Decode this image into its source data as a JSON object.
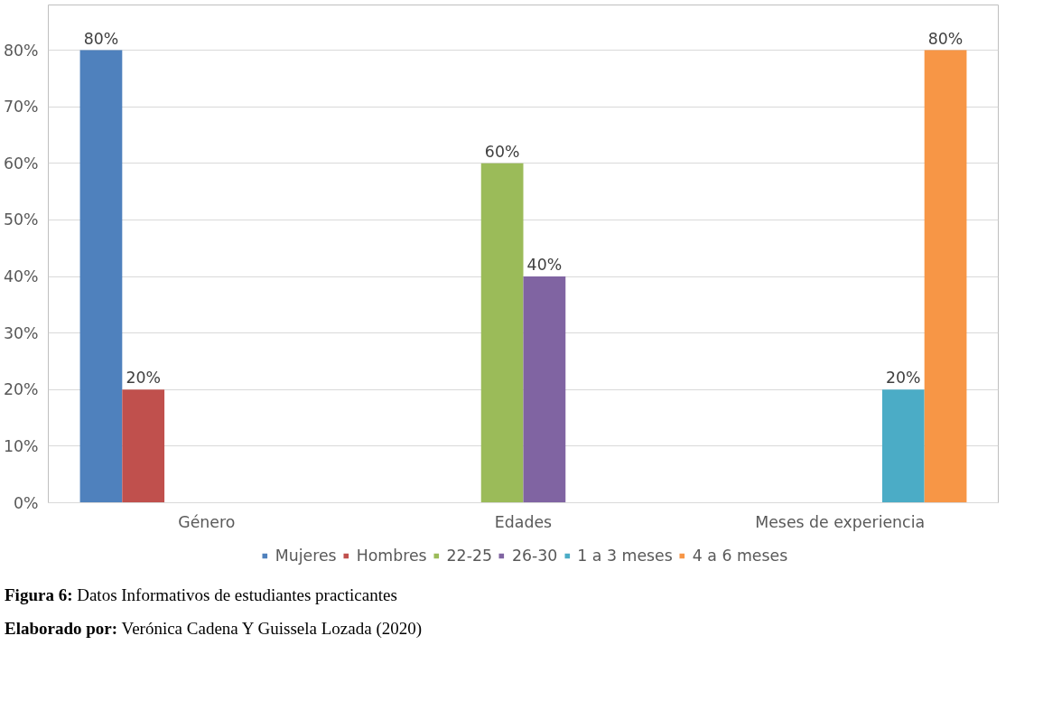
{
  "chart_data": {
    "type": "bar",
    "categories": [
      "Género",
      "Edades",
      "Meses de experiencia"
    ],
    "series": [
      {
        "name": "Mujeres",
        "color": "#4f81bd",
        "values": [
          80,
          null,
          null
        ],
        "value_labels": [
          "80%",
          null,
          null
        ]
      },
      {
        "name": "Hombres",
        "color": "#c0504d",
        "values": [
          20,
          null,
          null
        ],
        "value_labels": [
          "20%",
          null,
          null
        ]
      },
      {
        "name": "22-25",
        "color": "#9bbb59",
        "values": [
          null,
          60,
          null
        ],
        "value_labels": [
          null,
          "60%",
          null
        ]
      },
      {
        "name": "26-30",
        "color": "#8064a2",
        "values": [
          null,
          40,
          null
        ],
        "value_labels": [
          null,
          "40%",
          null
        ]
      },
      {
        "name": "1 a 3 meses",
        "color": "#4bacc6",
        "values": [
          null,
          null,
          20
        ],
        "value_labels": [
          null,
          null,
          "20%"
        ]
      },
      {
        "name": "4 a 6 meses",
        "color": "#f79646",
        "values": [
          null,
          null,
          80
        ],
        "value_labels": [
          null,
          null,
          "80%"
        ]
      }
    ],
    "ylim": [
      0,
      80
    ],
    "yticks": [
      {
        "value": 0,
        "label": "0%"
      },
      {
        "value": 10,
        "label": "10%"
      },
      {
        "value": 20,
        "label": "20%"
      },
      {
        "value": 30,
        "label": "30%"
      },
      {
        "value": 40,
        "label": "40%"
      },
      {
        "value": 50,
        "label": "50%"
      },
      {
        "value": 60,
        "label": "60%"
      },
      {
        "value": 70,
        "label": "70%"
      },
      {
        "value": 80,
        "label": "80%"
      }
    ],
    "grid": "y",
    "legend": "bottom",
    "annotations": [
      "Figura 6: Datos Informativos de estudiantes practicantes",
      "Elaborado por: Verónica Cadena Y Guissela Lozada (2020)"
    ]
  }
}
